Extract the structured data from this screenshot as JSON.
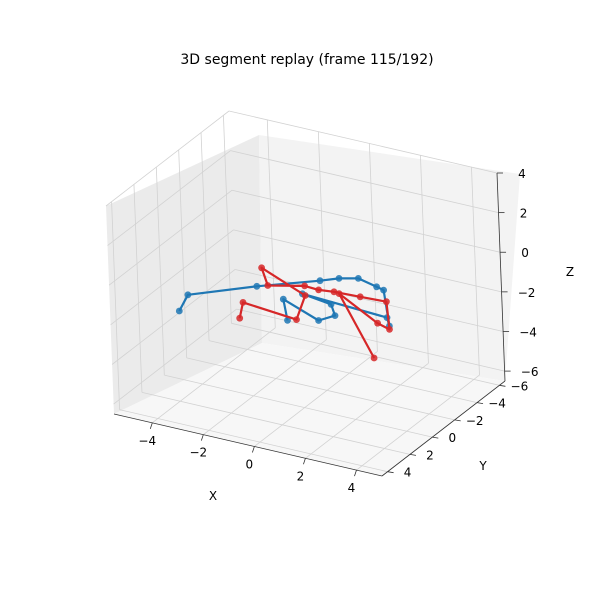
{
  "chart_data": {
    "type": "scatter",
    "projection": "3d",
    "title": "3D segment replay (frame 115/192)",
    "xlabel": "X",
    "ylabel": "Y",
    "zlabel": "Z",
    "xlim": [
      -5.5,
      5
    ],
    "ylim": [
      -6.5,
      4.5
    ],
    "zlim": [
      -6.5,
      4
    ],
    "xticks": [
      -4,
      -2,
      0,
      2,
      4
    ],
    "yticks": [
      -6,
      -4,
      -2,
      0,
      2,
      4
    ],
    "zticks": [
      -6,
      -4,
      -2,
      0,
      2,
      4
    ],
    "grid": true,
    "colors": {
      "blue": "#1f77b4",
      "red": "#d62728"
    },
    "series": [
      {
        "color": "#1f77b4",
        "points": [
          [
            -5.4,
            -1.3,
            -3.8
          ],
          [
            -4.9,
            -1.0,
            -2.7
          ],
          [
            -1.8,
            -0.2,
            -1.0
          ],
          [
            1.8,
            2.2,
            1.4
          ],
          [
            2.6,
            2.3,
            1.8
          ],
          [
            3.5,
            2.6,
            2.2
          ],
          [
            4.3,
            2.8,
            2.1
          ],
          [
            4.8,
            3.3,
            2.3
          ],
          [
            4.7,
            2.7,
            0.2
          ],
          [
            4.3,
            2.0,
            0.2
          ],
          [
            0.9,
            1.8,
            0.3
          ],
          [
            1.7,
            1.1,
            -0.3
          ],
          [
            1.7,
            0.8,
            -1.0
          ],
          [
            1.0,
            0.7,
            -1.5
          ],
          [
            -0.5,
            0.4,
            -1.0
          ],
          [
            -0.5,
            0.1,
            -2.2
          ]
        ]
      },
      {
        "color": "#d62728",
        "points": [
          [
            -3.3,
            -1.9,
            -3.8
          ],
          [
            -3.1,
            -1.8,
            -2.9
          ],
          [
            -0.1,
            0.2,
            -2.0
          ],
          [
            0.1,
            -0.2,
            -0.9
          ],
          [
            -1.9,
            -0.9,
            -0.4
          ],
          [
            -1.5,
            -0.5,
            -1.0
          ],
          [
            0.5,
            0.7,
            0.1
          ],
          [
            1.0,
            0.6,
            0.0
          ],
          [
            1.7,
            0.8,
            0.2
          ],
          [
            3.0,
            1.4,
            0.6
          ],
          [
            4.3,
            2.0,
            1.0
          ],
          [
            4.2,
            1.6,
            -0.6
          ],
          [
            3.6,
            1.3,
            -0.6
          ],
          [
            2.4,
            1.9,
            0.8
          ],
          [
            3.5,
            1.5,
            -2.3
          ]
        ]
      }
    ]
  }
}
